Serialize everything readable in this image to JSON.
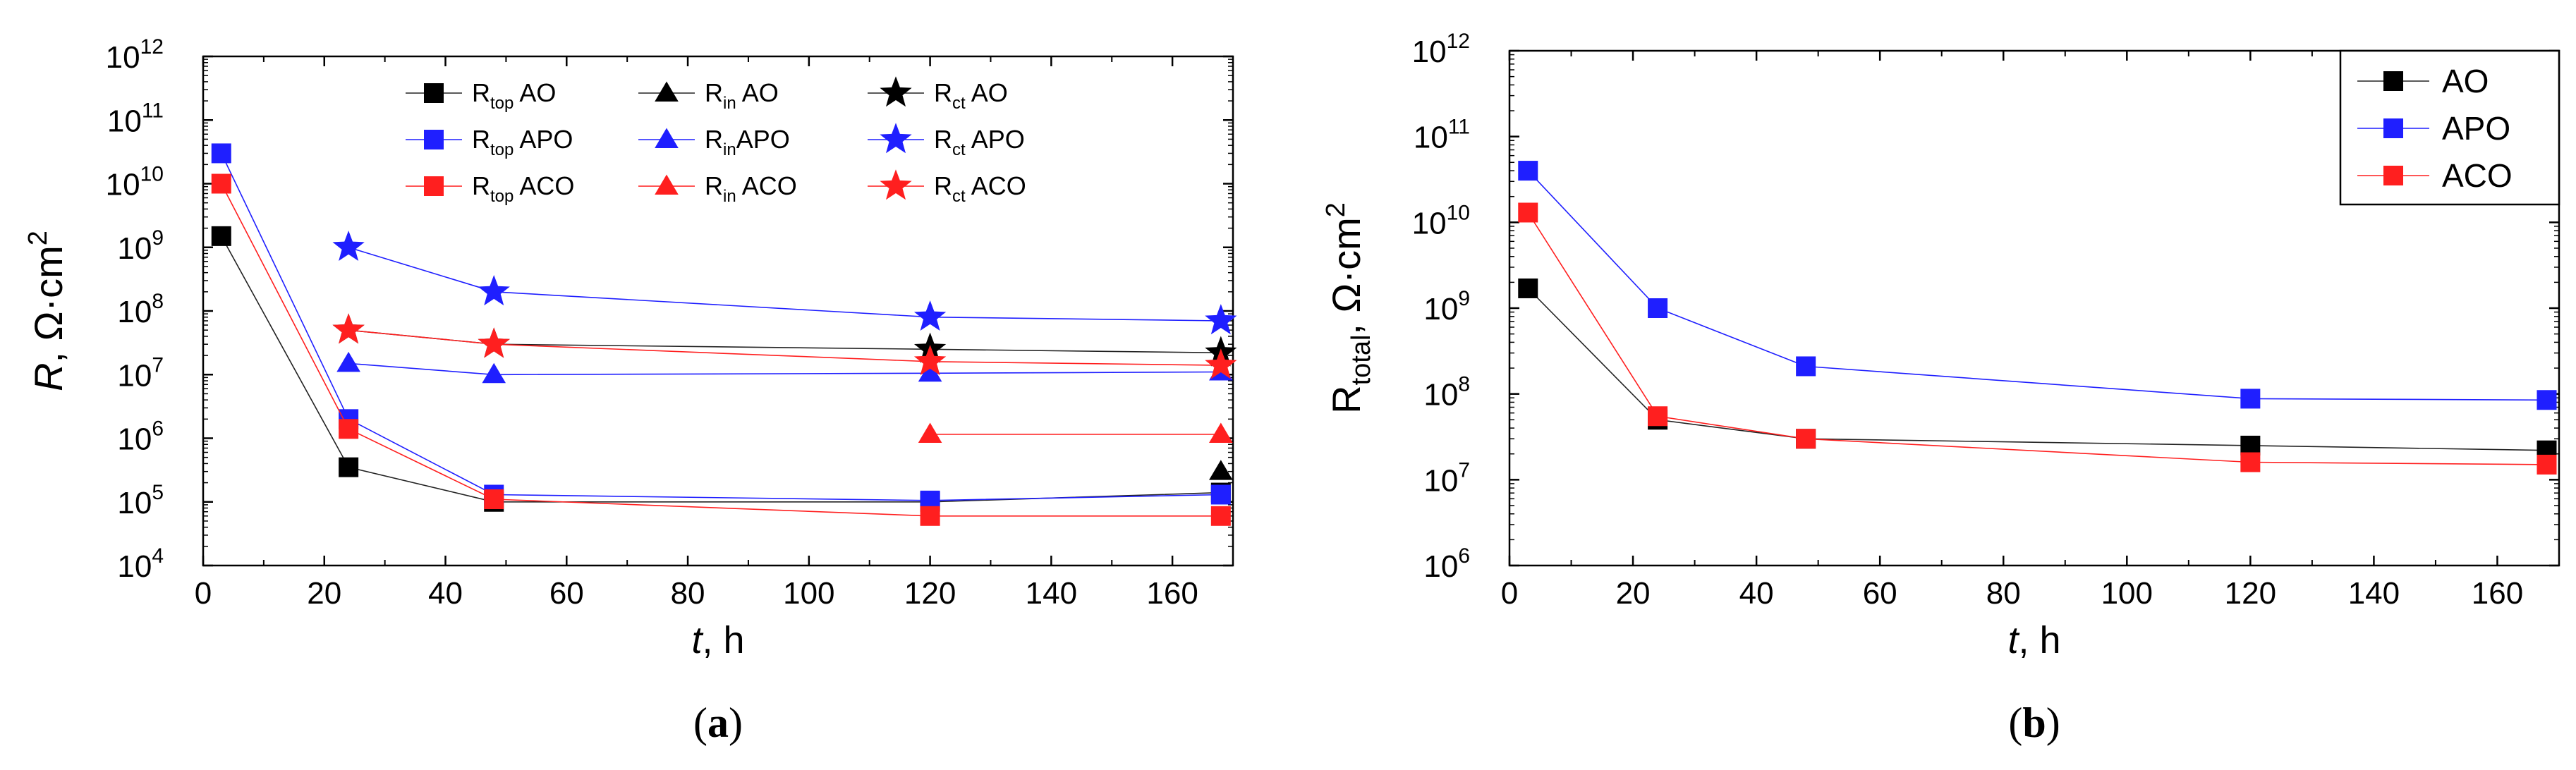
{
  "chart_data": [
    {
      "type": "line",
      "panel_label": "a",
      "xlabel": "t",
      "xlabel_unit": ", h",
      "ylabel": "R",
      "ylabel_unit": ", Ω·cm",
      "ylabel_exp": "2",
      "x_ticks": [
        0,
        20,
        40,
        60,
        80,
        100,
        120,
        140,
        160
      ],
      "xlim": [
        0,
        170
      ],
      "y_scale": "log",
      "ylim": [
        10000,
        1000000000000
      ],
      "y_tick_exps": [
        4,
        5,
        6,
        7,
        8,
        9,
        10,
        11,
        12
      ],
      "grid": false,
      "legend_position": "top-center",
      "legend": [
        {
          "main": "R",
          "sub": "top",
          "tail": " AO",
          "marker": "square",
          "color": "#000000"
        },
        {
          "main": "R",
          "sub": "top",
          "tail": " APO",
          "marker": "square",
          "color": "#1f1fff"
        },
        {
          "main": "R",
          "sub": "top",
          "tail": " ACO",
          "marker": "square",
          "color": "#ff1f1f"
        },
        {
          "main": "R",
          "sub": "in",
          "tail": " AO",
          "marker": "triangle",
          "color": "#000000"
        },
        {
          "main": "R",
          "sub": "in",
          "tail": "APO",
          "marker": "triangle",
          "color": "#1f1fff"
        },
        {
          "main": "R",
          "sub": "in",
          "tail": " ACO",
          "marker": "triangle",
          "color": "#ff1f1f"
        },
        {
          "main": "R",
          "sub": "ct",
          "tail": " AO",
          "marker": "star",
          "color": "#000000"
        },
        {
          "main": "R",
          "sub": "ct",
          "tail": " APO",
          "marker": "star",
          "color": "#1f1fff"
        },
        {
          "main": "R",
          "sub": "ct",
          "tail": " ACO",
          "marker": "star",
          "color": "#ff1f1f"
        }
      ],
      "series": [
        {
          "marker": "square",
          "color": "#000000",
          "x": [
            3,
            24,
            48,
            120,
            168
          ],
          "y": [
            1500000000.0,
            350000.0,
            100000.0,
            100000.0,
            140000.0
          ]
        },
        {
          "marker": "square",
          "color": "#1f1fff",
          "x": [
            3,
            24,
            48,
            120,
            168
          ],
          "y": [
            30000000000.0,
            2000000.0,
            130000.0,
            105000.0,
            130000.0
          ]
        },
        {
          "marker": "square",
          "color": "#ff1f1f",
          "x": [
            3,
            24,
            48,
            120,
            168
          ],
          "y": [
            10000000000.0,
            1400000.0,
            110000.0,
            60000.0,
            60000.0
          ]
        },
        {
          "marker": "triangle",
          "color": "#000000",
          "x": [
            168
          ],
          "y": [
            300000.0
          ]
        },
        {
          "marker": "triangle",
          "color": "#1f1fff",
          "x": [
            24,
            48,
            120,
            168
          ],
          "y": [
            15000000.0,
            10000000.0,
            10500000.0,
            11000000.0
          ]
        },
        {
          "marker": "triangle",
          "color": "#ff1f1f",
          "x": [
            120,
            168
          ],
          "y": [
            1150000.0,
            1150000.0
          ]
        },
        {
          "marker": "star",
          "color": "#000000",
          "x": [
            24,
            48,
            120,
            168
          ],
          "y": [
            50000000.0,
            30000000.0,
            25000000.0,
            22000000.0
          ]
        },
        {
          "marker": "star",
          "color": "#1f1fff",
          "x": [
            24,
            48,
            120,
            168
          ],
          "y": [
            1000000000.0,
            200000000.0,
            80000000.0,
            70000000.0
          ]
        },
        {
          "marker": "star",
          "color": "#ff1f1f",
          "x": [
            24,
            48,
            120,
            168
          ],
          "y": [
            50000000.0,
            30000000.0,
            16000000.0,
            14000000.0
          ]
        }
      ]
    },
    {
      "type": "line",
      "panel_label": "b",
      "xlabel": "t",
      "xlabel_unit": ", h",
      "ylabel_main": "R",
      "ylabel_sub": "total",
      "ylabel_unit": ", Ω·cm",
      "ylabel_exp": "2",
      "x_ticks": [
        0,
        20,
        40,
        60,
        80,
        100,
        120,
        140,
        160
      ],
      "xlim": [
        0,
        170
      ],
      "y_scale": "log",
      "ylim": [
        1000000,
        1000000000000
      ],
      "y_tick_exps": [
        6,
        7,
        8,
        9,
        10,
        11,
        12
      ],
      "grid": false,
      "legend_position": "top-right",
      "series": [
        {
          "name": "AO",
          "marker": "square",
          "color": "#000000",
          "x": [
            3,
            24,
            48,
            120,
            168
          ],
          "y": [
            1700000000.0,
            50000000.0,
            30000000.0,
            25000000.0,
            22000000.0
          ]
        },
        {
          "name": "APO",
          "marker": "square",
          "color": "#1f1fff",
          "x": [
            3,
            24,
            48,
            120,
            168
          ],
          "y": [
            40000000000.0,
            1000000000.0,
            210000000.0,
            88000000.0,
            85000000.0
          ]
        },
        {
          "name": "ACO",
          "marker": "square",
          "color": "#ff1f1f",
          "x": [
            3,
            24,
            48,
            120,
            168
          ],
          "y": [
            13000000000.0,
            55000000.0,
            30000000.0,
            16000000.0,
            15000000.0
          ]
        }
      ]
    }
  ]
}
